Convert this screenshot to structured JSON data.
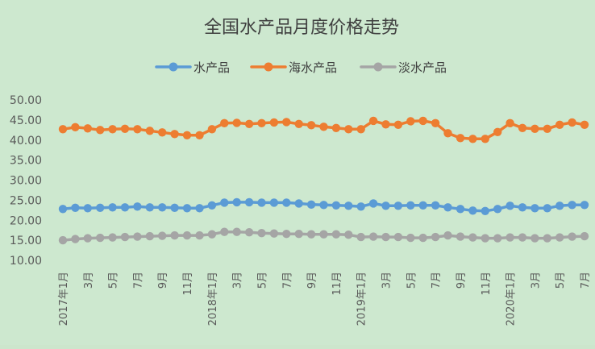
{
  "chart_data": {
    "type": "line",
    "title": "全国水产品月度价格走势",
    "ylim": [
      10,
      50
    ],
    "y_ticks": [
      "10.00",
      "15.00",
      "20.00",
      "25.00",
      "30.00",
      "35.00",
      "40.00",
      "45.00",
      "50.00"
    ],
    "y_tick_values": [
      10,
      15,
      20,
      25,
      30,
      35,
      40,
      45,
      50
    ],
    "grid": false,
    "legend": "top-center",
    "x": [
      "2017年1月",
      "2月",
      "3月",
      "4月",
      "5月",
      "6月",
      "7月",
      "8月",
      "9月",
      "10月",
      "11月",
      "12月",
      "2018年1月",
      "2月",
      "3月",
      "4月",
      "5月",
      "6月",
      "7月",
      "8月",
      "9月",
      "10月",
      "11月",
      "12月",
      "2019年1月",
      "2月",
      "3月",
      "4月",
      "5月",
      "6月",
      "7月",
      "8月",
      "9月",
      "10月",
      "11月",
      "12月",
      "2020年1月",
      "2月",
      "3月",
      "4月",
      "5月",
      "6月",
      "7月"
    ],
    "x_tick_labels": [
      "2017年1月",
      "",
      "3月",
      "",
      "5月",
      "",
      "7月",
      "",
      "9月",
      "",
      "11月",
      "",
      "2018年1月",
      "",
      "3月",
      "",
      "5月",
      "",
      "7月",
      "",
      "9月",
      "",
      "11月",
      "",
      "2019年1月",
      "",
      "3月",
      "",
      "5月",
      "",
      "7月",
      "",
      "9月",
      "",
      "11月",
      "",
      "2020年1月",
      "",
      "3月",
      "",
      "5月",
      "",
      "7月"
    ],
    "series": [
      {
        "name": "水产品",
        "color": "#5b9bd5",
        "values": [
          22.6,
          22.9,
          22.8,
          22.9,
          23.0,
          23.0,
          23.2,
          23.0,
          23.0,
          22.9,
          22.8,
          22.8,
          23.5,
          24.2,
          24.3,
          24.3,
          24.2,
          24.2,
          24.2,
          24.0,
          23.7,
          23.6,
          23.5,
          23.4,
          23.2,
          24.0,
          23.4,
          23.4,
          23.5,
          23.5,
          23.5,
          23.0,
          22.6,
          22.2,
          22.1,
          22.6,
          23.4,
          23.0,
          22.8,
          22.8,
          23.4,
          23.6,
          23.6
        ]
      },
      {
        "name": "海水产品",
        "color": "#ed7d31",
        "values": [
          42.5,
          43.0,
          42.7,
          42.3,
          42.5,
          42.6,
          42.5,
          42.1,
          41.7,
          41.3,
          41.0,
          41.0,
          42.5,
          44.0,
          44.1,
          43.8,
          44.0,
          44.2,
          44.3,
          43.8,
          43.5,
          43.1,
          42.8,
          42.5,
          42.5,
          44.6,
          43.7,
          43.6,
          44.5,
          44.6,
          44.0,
          41.5,
          40.3,
          40.1,
          40.1,
          41.8,
          44.0,
          42.8,
          42.6,
          42.6,
          43.6,
          44.2,
          43.6
        ]
      },
      {
        "name": "淡水产品",
        "color": "#a5a5a5",
        "values": [
          14.8,
          15.1,
          15.3,
          15.4,
          15.5,
          15.6,
          15.7,
          15.8,
          15.9,
          16.0,
          16.0,
          16.0,
          16.3,
          16.9,
          16.9,
          16.8,
          16.6,
          16.5,
          16.4,
          16.4,
          16.3,
          16.3,
          16.3,
          16.2,
          15.6,
          15.7,
          15.6,
          15.6,
          15.4,
          15.4,
          15.6,
          16.0,
          15.7,
          15.5,
          15.3,
          15.3,
          15.5,
          15.5,
          15.3,
          15.3,
          15.5,
          15.7,
          15.8
        ]
      }
    ]
  }
}
